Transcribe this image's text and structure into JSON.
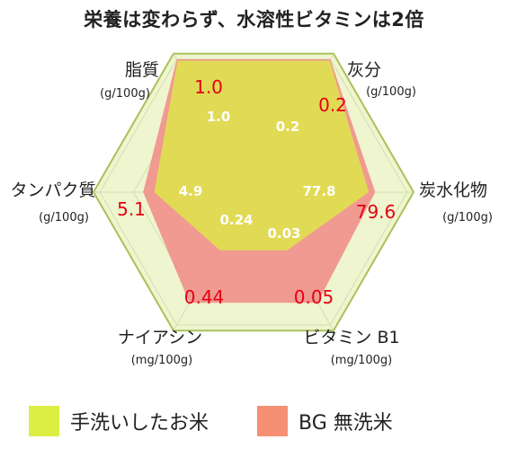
{
  "title": "栄養は変わらず、水溶性ビタミンは2倍",
  "colors": {
    "hex_fill": "#eef5cf",
    "hex_stroke": "#a9c15a",
    "grid": "#d3deb0",
    "series_wash": "#eb8c82",
    "series_bg": "#f0908a",
    "series_hand": "#e0e050",
    "legend_hand": "#dcee44",
    "legend_bg": "#f59075"
  },
  "chart_data": {
    "type": "radar",
    "axes": [
      {
        "id": "fat",
        "name": "脂質",
        "unit": "(g/100g)"
      },
      {
        "id": "ash",
        "name": "灰分",
        "unit": "(g/100g)"
      },
      {
        "id": "carb",
        "name": "炭水化物",
        "unit": "(g/100g)"
      },
      {
        "id": "vitb1",
        "name": "ビタミン B1",
        "unit": "(mg/100g)"
      },
      {
        "id": "niacin",
        "name": "ナイアシン",
        "unit": "(mg/100g)"
      },
      {
        "id": "protein",
        "name": "タンパク質",
        "unit": "(g/100g)"
      }
    ],
    "series": [
      {
        "name": "BG 無洗米",
        "values": [
          1.0,
          0.2,
          79.6,
          0.05,
          0.44,
          5.1
        ],
        "labels": [
          "1.0",
          "0.2",
          "79.6",
          "0.05",
          "0.44",
          "5.1"
        ],
        "level": [
          0.96,
          0.96,
          0.76,
          0.8,
          0.8,
          0.69
        ]
      },
      {
        "name": "手洗いしたお米",
        "values": [
          1.0,
          0.2,
          77.8,
          0.03,
          0.24,
          4.9
        ],
        "labels": [
          "1.0",
          "0.2",
          "77.8",
          "0.03",
          "0.24",
          "4.9"
        ],
        "level": [
          0.95,
          0.95,
          0.72,
          0.42,
          0.42,
          0.62
        ]
      }
    ]
  },
  "legend": [
    {
      "label": "手洗いしたお米"
    },
    {
      "label": "BG 無洗米"
    }
  ]
}
